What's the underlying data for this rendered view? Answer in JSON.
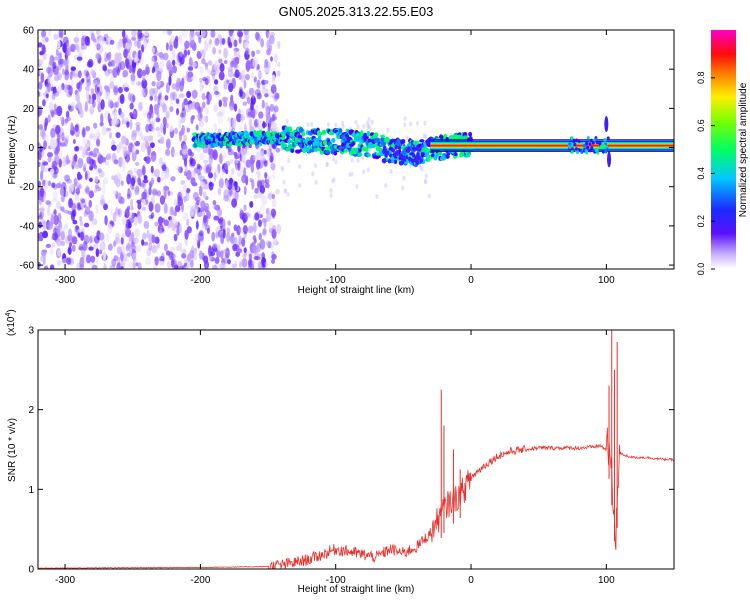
{
  "title": "GN05.2025.313.22.55.E03",
  "chart_data": [
    {
      "type": "heatmap",
      "xlabel": "Height of straight line (km)",
      "ylabel": "Frequency (Hz)",
      "xlim": [
        -320,
        150
      ],
      "ylim": [
        -62,
        60
      ],
      "xticks": [
        -300,
        -200,
        -100,
        0,
        100
      ],
      "yticks": [
        60,
        40,
        20,
        0,
        -20,
        -40,
        -60
      ],
      "ridge": {
        "x": [
          -200,
          -180,
          -160,
          -140,
          -120,
          -100,
          -80,
          -60,
          -40,
          -20,
          0,
          20,
          40,
          60,
          80,
          90,
          100,
          110,
          150
        ],
        "y": [
          4,
          4,
          5,
          5,
          3,
          3,
          2,
          -1,
          -3,
          0,
          1,
          1,
          1,
          1,
          2,
          3,
          1,
          1,
          1
        ]
      },
      "colorbar": {
        "label": "Normalized spectral amplitude",
        "range": [
          0,
          1
        ],
        "ticks": [
          0.0,
          0.2,
          0.4,
          0.6,
          0.8
        ],
        "tick_labels": [
          "0.0",
          "0.2",
          "0.4",
          "0.6",
          "0.8"
        ]
      }
    },
    {
      "type": "line",
      "xlabel": "Height of straight line (km)",
      "ylabel": "SNR (10 * v/v)",
      "multiplier": "(x10",
      "multiplier_exp": "4",
      "multiplier_close": ")",
      "xlim": [
        -320,
        150
      ],
      "ylim": [
        0,
        3
      ],
      "xticks": [
        -300,
        -200,
        -100,
        0,
        100
      ],
      "yticks": [
        0,
        1,
        2,
        3
      ],
      "color": "#e8302a",
      "series": [
        {
          "x": [
            -320,
            -200,
            -150,
            -140,
            -130,
            -120,
            -110,
            -100,
            -90,
            -80,
            -70,
            -60,
            -50,
            -40,
            -30,
            -25,
            -20,
            -15,
            -10,
            -5,
            0,
            10,
            20,
            30,
            40,
            50,
            60,
            70,
            80,
            90,
            95,
            100,
            103,
            105,
            107,
            110,
            115,
            120,
            130,
            140,
            150
          ],
          "y": [
            0.01,
            0.02,
            0.03,
            0.05,
            0.08,
            0.12,
            0.18,
            0.25,
            0.22,
            0.18,
            0.15,
            0.25,
            0.2,
            0.28,
            0.45,
            0.6,
            0.75,
            0.85,
            0.9,
            1.0,
            1.15,
            1.3,
            1.42,
            1.48,
            1.5,
            1.52,
            1.52,
            1.52,
            1.52,
            1.53,
            1.55,
            1.5,
            1.4,
            0.8,
            0.5,
            1.45,
            1.42,
            1.4,
            1.4,
            1.38,
            1.37
          ]
        }
      ],
      "spikes": [
        {
          "x": -22,
          "y": 2.25
        },
        {
          "x": -20,
          "y": 1.8
        },
        {
          "x": -13,
          "y": 1.5
        },
        {
          "x": -8,
          "y": 1.25
        },
        {
          "x": 102,
          "y": 2.3
        },
        {
          "x": 104,
          "y": 3.0
        },
        {
          "x": 106,
          "y": 2.5
        },
        {
          "x": 108,
          "y": 2.85
        }
      ]
    }
  ]
}
